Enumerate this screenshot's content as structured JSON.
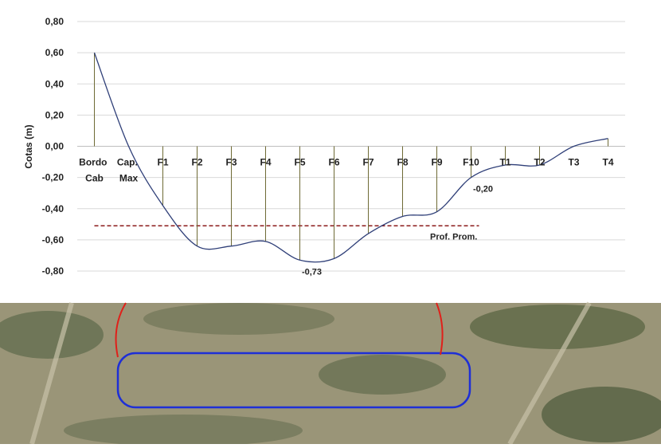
{
  "chart_data": {
    "type": "line",
    "y_label": "Cotas (m)",
    "categories": [
      "Bordo Cab",
      "Cap. Max",
      "F1",
      "F2",
      "F3",
      "F4",
      "F5",
      "F6",
      "F7",
      "F8",
      "F9",
      "F10",
      "T1",
      "T2",
      "T3",
      "T4"
    ],
    "series": [
      {
        "color": "#2f3f78",
        "values": [
          0.6,
          0.0,
          -0.38,
          -0.64,
          -0.64,
          -0.61,
          -0.73,
          -0.72,
          -0.56,
          -0.45,
          -0.42,
          -0.2,
          -0.12,
          -0.12,
          0.0,
          0.05
        ],
        "value_labels": [
          null,
          null,
          null,
          null,
          null,
          null,
          "-0,73",
          null,
          null,
          null,
          null,
          "-0,20",
          null,
          null,
          null,
          null
        ]
      }
    ],
    "ylim": [
      -0.8,
      0.8
    ],
    "yticks": [
      {
        "value": -0.8,
        "label": "-0,80"
      },
      {
        "value": -0.6,
        "label": "-0,60"
      },
      {
        "value": -0.4,
        "label": "-0,40"
      },
      {
        "value": -0.2,
        "label": "-0,20"
      },
      {
        "value": 0,
        "label": "0,00"
      },
      {
        "value": 0.2,
        "label": "0,20"
      },
      {
        "value": 0.4,
        "label": "0,40"
      },
      {
        "value": 0.6,
        "label": "0,60"
      },
      {
        "value": 0.8,
        "label": "0,80"
      }
    ],
    "grid": true,
    "average": {
      "value": -0.51,
      "label": "Prof. Prom.",
      "color": "#8b1a1a"
    },
    "drop_line_color": "#6e6a35"
  }
}
